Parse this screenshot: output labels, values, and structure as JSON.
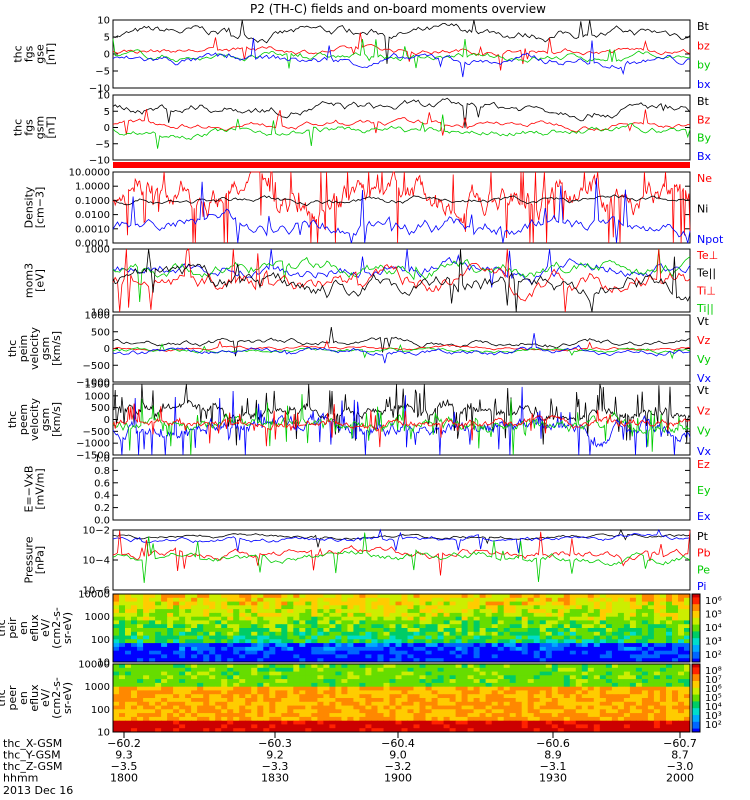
{
  "title": "P2 (TH-C) fields and on-board moments overview",
  "panels": [
    {
      "id": "fgs-gse",
      "ylabel": [
        "thc",
        "fgs",
        "gse",
        "[nT]"
      ],
      "yticks": [
        "10",
        "5",
        "0",
        "−5",
        "−10"
      ],
      "legend": [
        {
          "text": "Bt",
          "color": "#000000"
        },
        {
          "text": "bz",
          "color": "#ff0000"
        },
        {
          "text": "by",
          "color": "#00cc00"
        },
        {
          "text": "bx",
          "color": "#0000ff"
        }
      ]
    },
    {
      "id": "fgs-gsm",
      "ylabel": [
        "thc",
        "fgs",
        "gsm",
        "[nT]"
      ],
      "yticks": [
        "10",
        "5",
        "0",
        "−5",
        "−10"
      ],
      "legend": [
        {
          "text": "Bt",
          "color": "#000000"
        },
        {
          "text": "Bz",
          "color": "#ff0000"
        },
        {
          "text": "By",
          "color": "#00cc00"
        },
        {
          "text": "Bx",
          "color": "#0000ff"
        }
      ]
    },
    {
      "id": "density",
      "ylabel": [
        "Density",
        "[cm−3]"
      ],
      "yticks": [
        "10.0000",
        "1.0000",
        "0.1000",
        "0.0100",
        "0.0010",
        "0.0001"
      ],
      "legend": [
        {
          "text": "Ne",
          "color": "#ff0000"
        },
        {
          "text": "Ni",
          "color": "#000000"
        },
        {
          "text": "Npot",
          "color": "#0000ff"
        }
      ]
    },
    {
      "id": "temperature",
      "ylabel": [
        "mom3",
        "[eV]"
      ],
      "yticks": [
        "1000",
        "100"
      ],
      "legend": [
        {
          "text": "Te⊥",
          "color": "#ff0000"
        },
        {
          "text": "Te||",
          "color": "#000000"
        },
        {
          "text": "Ti⊥",
          "color": "#ff0000"
        },
        {
          "text": "Ti||",
          "color": "#00cc00"
        }
      ]
    },
    {
      "id": "peim-velocity",
      "ylabel": [
        "thc",
        "peim",
        "velocity",
        "gsm",
        "[km/s]"
      ],
      "yticks": [
        "1000",
        "500",
        "0",
        "−500",
        "−1000"
      ],
      "legend": [
        {
          "text": "Vt",
          "color": "#000000"
        },
        {
          "text": "Vz",
          "color": "#ff0000"
        },
        {
          "text": "Vy",
          "color": "#00cc00"
        },
        {
          "text": "Vx",
          "color": "#0000ff"
        }
      ]
    },
    {
      "id": "peem-velocity",
      "ylabel": [
        "thc",
        "peem",
        "velocity",
        "gsm",
        "[km/s]"
      ],
      "yticks": [
        "1500",
        "1000",
        "500",
        "0",
        "−500",
        "−1000",
        "−1500"
      ],
      "legend": [
        {
          "text": "Vt",
          "color": "#000000"
        },
        {
          "text": "Vz",
          "color": "#ff0000"
        },
        {
          "text": "Vy",
          "color": "#00cc00"
        },
        {
          "text": "Vx",
          "color": "#0000ff"
        }
      ]
    },
    {
      "id": "efield",
      "ylabel": [
        "E=−VxB",
        "[mV/m]"
      ],
      "yticks": [
        "1.0",
        "0.8",
        "0.6",
        "0.4",
        "0.2",
        "0.0"
      ],
      "legend": [
        {
          "text": "Ez",
          "color": "#ff0000"
        },
        {
          "text": "Ey",
          "color": "#00cc00"
        },
        {
          "text": "Ex",
          "color": "#0000ff"
        }
      ]
    },
    {
      "id": "pressure",
      "ylabel": [
        "Pressure",
        "[nPa]"
      ],
      "yticks": [
        "10−2",
        "10−4",
        "10−6"
      ],
      "legend": [
        {
          "text": "Pt",
          "color": "#000000"
        },
        {
          "text": "Pb",
          "color": "#ff0000"
        },
        {
          "text": "Pe",
          "color": "#00cc00"
        },
        {
          "text": "Pi",
          "color": "#0000ff"
        }
      ]
    },
    {
      "id": "peir-spec",
      "ylabel": [
        "thc",
        "peir",
        "en",
        "eflux",
        "eV/",
        "(cm2-s-",
        "sr-eV)"
      ],
      "yticks": [
        "10000",
        "1000",
        "100",
        "10"
      ],
      "legend": []
    },
    {
      "id": "peer-spec",
      "ylabel": [
        "thc",
        "peer",
        "en",
        "eflux",
        "eV/",
        "(cm2-s-",
        "sr-eV)"
      ],
      "yticks": [
        "10000",
        "1000",
        "100",
        "10"
      ],
      "legend": []
    }
  ],
  "colorbars": [
    {
      "labels": [
        "10⁶",
        "10⁵",
        "10⁴",
        "10³",
        "10²"
      ]
    },
    {
      "labels": [
        "10⁸",
        "10⁷",
        "10⁶",
        "10⁵",
        "10⁴",
        "10³",
        "10²"
      ]
    }
  ],
  "footer": {
    "rows": [
      {
        "label": "thc_X-GSM",
        "values": [
          "−60.2",
          "−60.3",
          "−60.4",
          "−60.6",
          "−60.7"
        ]
      },
      {
        "label": "thc_Y-GSM",
        "values": [
          "9.3",
          "9.2",
          "9.0",
          "8.9",
          "8.7"
        ]
      },
      {
        "label": "thc_Z-GSM",
        "values": [
          "−3.5",
          "−3.3",
          "−3.2",
          "−3.1",
          "−3.0"
        ]
      },
      {
        "label": "hhmm",
        "values": [
          "1800",
          "1830",
          "1900",
          "1930",
          "2000"
        ]
      }
    ],
    "date": "2013 Dec 16"
  },
  "chart_data": {
    "type": "line",
    "title": "P2 (TH-C) fields and on-board moments overview",
    "x_time": [
      "1800",
      "1830",
      "1900",
      "1930",
      "2000"
    ],
    "x_label": "hhmm",
    "date": "2013 Dec 16",
    "series": [
      {
        "panel": "fgs-gse",
        "name": "Bt",
        "values": [
          7,
          6,
          5,
          5,
          4
        ]
      },
      {
        "panel": "fgs-gse",
        "name": "bz",
        "values": [
          2,
          1,
          1,
          0,
          1
        ]
      },
      {
        "panel": "fgs-gse",
        "name": "by",
        "values": [
          -1,
          -1,
          -1,
          -1,
          -1
        ]
      },
      {
        "panel": "fgs-gse",
        "name": "bx",
        "values": [
          -2,
          -2,
          -2,
          -4,
          -2
        ]
      },
      {
        "panel": "density",
        "name": "Ne",
        "values": [
          0.3,
          0.4,
          0.3,
          0.3,
          0.2
        ]
      },
      {
        "panel": "density",
        "name": "Npot",
        "values": [
          0.005,
          0.005,
          0.003,
          0.01,
          0.02
        ]
      },
      {
        "panel": "temperature",
        "name": "Ti||",
        "values": [
          1500,
          1500,
          1200,
          1500,
          1500
        ]
      },
      {
        "panel": "temperature",
        "name": "Te||",
        "values": [
          600,
          700,
          600,
          400,
          300
        ]
      },
      {
        "panel": "peim-velocity",
        "name": "Vt",
        "values": [
          300,
          250,
          300,
          100,
          200
        ]
      },
      {
        "panel": "peem-velocity",
        "name": "Vt",
        "values": [
          600,
          500,
          400,
          300,
          300
        ]
      }
    ]
  }
}
